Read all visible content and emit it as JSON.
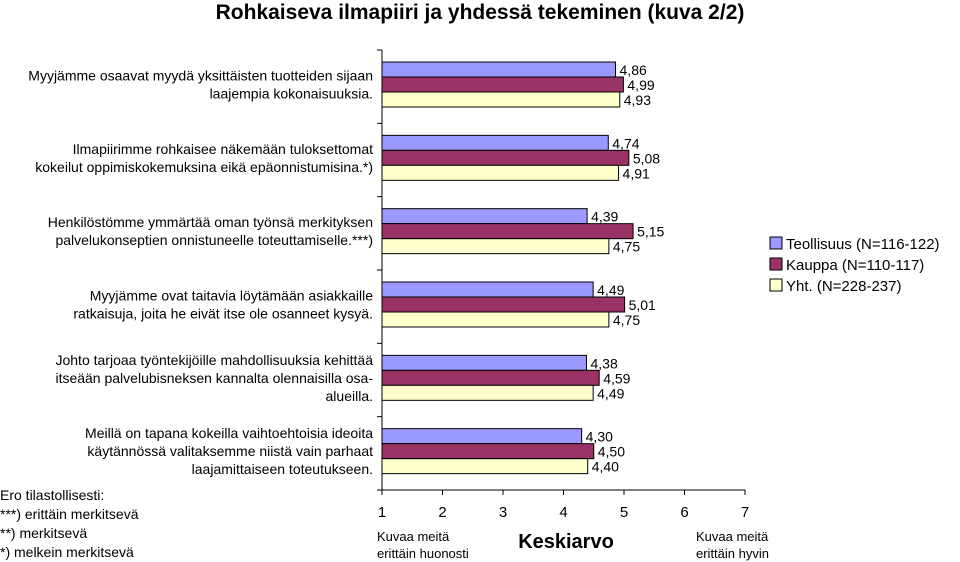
{
  "title": "Rohkaiseva ilmapiiri ja yhdessä tekeminen (kuva 2/2)",
  "colors": {
    "series": [
      "#9999ff",
      "#993366",
      "#ffffcc"
    ]
  },
  "chart_data": {
    "type": "bar",
    "orientation": "horizontal",
    "xlim": [
      1,
      7
    ],
    "xticks": [
      "1",
      "2",
      "3",
      "4",
      "5",
      "6",
      "7"
    ],
    "xlabel": "Keskiarvo",
    "x_min_label": [
      "Kuvaa meitä",
      "erittäin huonosti"
    ],
    "x_max_label": [
      "Kuvaa meitä",
      "erittäin hyvin"
    ],
    "categories": [
      [
        "Myyjämme osaavat myydä yksittäisten tuotteiden sijaan",
        "laajempia kokonaisuuksia."
      ],
      [
        "Ilmapiirimme rohkaisee näkemään tuloksettomat",
        "kokeilut oppimiskokemuksina eikä epäonnistumisina.*)"
      ],
      [
        "Henkilöstömme ymmärtää oman työnsä merkityksen",
        "palvelukonseptien onnistuneelle toteuttamiselle.***)"
      ],
      [
        "Myyjämme ovat taitavia löytämään asiakkaille",
        "ratkaisuja, joita he eivät itse ole osanneet kysyä."
      ],
      [
        "Johto tarjoaa työntekijöille mahdollisuuksia kehittää",
        "itseään palvelubisneksen kannalta olennaisilla osa-",
        "alueilla."
      ],
      [
        "Meillä on tapana kokeilla vaihtoehtoisia ideoita",
        "käytännössä valitaksemme niistä vain parhaat",
        "laajamittaiseen toteutukseen."
      ]
    ],
    "series": [
      {
        "name": "Teollisuus (N=116-122)",
        "values": [
          4.86,
          4.74,
          4.39,
          4.49,
          4.38,
          4.3
        ],
        "labels": [
          "4,86",
          "4,74",
          "4,39",
          "4,49",
          "4,38",
          "4,30"
        ]
      },
      {
        "name": "Kauppa (N=110-117)",
        "values": [
          4.99,
          5.08,
          5.15,
          5.01,
          4.59,
          4.5
        ],
        "labels": [
          "4,99",
          "5,08",
          "5,15",
          "5,01",
          "4,59",
          "4,50"
        ]
      },
      {
        "name": "Yht. (N=228-237)",
        "values": [
          4.93,
          4.91,
          4.75,
          4.75,
          4.49,
          4.4
        ],
        "labels": [
          "4,93",
          "4,91",
          "4,75",
          "4,75",
          "4,49",
          "4,40"
        ]
      }
    ],
    "footnote": [
      "Ero tilastollisesti:",
      "***) erittäin merkitsevä",
      "**) merkitsevä",
      "*) melkein merkitsevä"
    ],
    "legend_position": "right"
  }
}
